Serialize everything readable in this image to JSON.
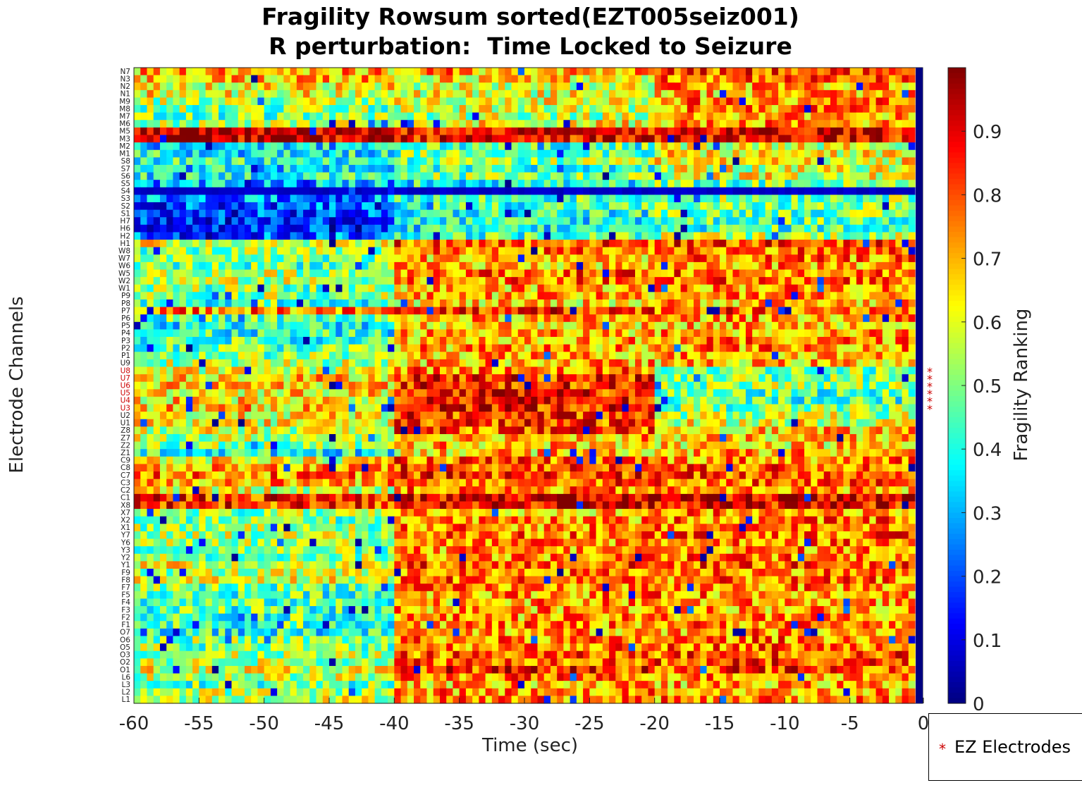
{
  "chart_data": {
    "type": "heatmap",
    "title": [
      "Fragility Rowsum sorted(EZT005seiz001)",
      "R perturbation:  Time Locked to Seizure"
    ],
    "xlabel": "Time (sec)",
    "ylabel": "Electrode Channels",
    "colorbar_label": "Fragility Ranking",
    "colormap": "jet",
    "clim": [
      0,
      1
    ],
    "xlim": [
      -60,
      0
    ],
    "x_ticks": [
      -60,
      -55,
      -50,
      -45,
      -40,
      -35,
      -30,
      -25,
      -20,
      -15,
      -10,
      -5,
      0
    ],
    "x_tick_labels": [
      "-60",
      "-55",
      "-50",
      "-45",
      "-40",
      "-35",
      "-30",
      "-25",
      "-20",
      "-15",
      "-10",
      "-5",
      "0"
    ],
    "colorbar_ticks": [
      0,
      0.1,
      0.2,
      0.3,
      0.4,
      0.5,
      0.6,
      0.7,
      0.8,
      0.9
    ],
    "colorbar_tick_labels": [
      "0",
      "0.1",
      "0.2",
      "0.3",
      "0.4",
      "0.5",
      "0.6",
      "0.7",
      "0.8",
      "0.9"
    ],
    "channels_top_to_bottom": [
      "N7",
      "N3",
      "N2",
      "N1",
      "M9",
      "M8",
      "M7",
      "M6",
      "M5",
      "M3",
      "M2",
      "M1",
      "S8",
      "S7",
      "S6",
      "S5",
      "S4",
      "S3",
      "S2",
      "S1",
      "H7",
      "H6",
      "H2",
      "H1",
      "W8",
      "W7",
      "W6",
      "W5",
      "W2",
      "W1",
      "P9",
      "P8",
      "P7",
      "P6",
      "P5",
      "P4",
      "P3",
      "P2",
      "P1",
      "U9",
      "U8",
      "U7",
      "U6",
      "U5",
      "U4",
      "U3",
      "U2",
      "U1",
      "Z8",
      "Z7",
      "Z2",
      "Z1",
      "C9",
      "C8",
      "C7",
      "C3",
      "C2",
      "C1",
      "X8",
      "X7",
      "X2",
      "X1",
      "Y7",
      "Y6",
      "Y3",
      "Y2",
      "Y1",
      "F9",
      "F8",
      "F7",
      "F5",
      "F4",
      "F3",
      "F2",
      "F1",
      "O7",
      "O6",
      "O5",
      "O3",
      "O2",
      "O1",
      "L6",
      "L3",
      "L2",
      "L1"
    ],
    "ez_electrodes": [
      "U8",
      "U7",
      "U6",
      "U5",
      "U4",
      "U3"
    ],
    "ez_color": "#cc0000",
    "final_column_value": 0,
    "n_time_bins": 120,
    "row_profiles": {
      "N7": [
        0.7,
        0.72,
        0.8
      ],
      "N3": [
        0.68,
        0.65,
        0.78
      ],
      "N2": [
        0.62,
        0.6,
        0.72
      ],
      "N1": [
        0.62,
        0.6,
        0.7
      ],
      "M9": [
        0.55,
        0.6,
        0.75
      ],
      "M8": [
        0.5,
        0.58,
        0.74
      ],
      "M7": [
        0.48,
        0.55,
        0.7
      ],
      "M6": [
        0.55,
        0.62,
        0.72
      ],
      "M5": [
        0.97,
        0.9,
        0.93
      ],
      "M3": [
        0.95,
        0.9,
        0.9
      ],
      "M2": [
        0.35,
        0.45,
        0.6
      ],
      "M1": [
        0.38,
        0.48,
        0.62
      ],
      "S8": [
        0.4,
        0.5,
        0.62
      ],
      "S7": [
        0.35,
        0.45,
        0.58
      ],
      "S6": [
        0.4,
        0.5,
        0.6
      ],
      "S5": [
        0.3,
        0.4,
        0.48
      ],
      "S4": [
        0.05,
        0.05,
        0.05
      ],
      "S3": [
        0.25,
        0.45,
        0.5
      ],
      "S2": [
        0.2,
        0.45,
        0.48
      ],
      "S1": [
        0.18,
        0.42,
        0.48
      ],
      "H7": [
        0.18,
        0.4,
        0.46
      ],
      "H6": [
        0.15,
        0.38,
        0.44
      ],
      "H2": [
        0.22,
        0.45,
        0.55
      ],
      "H1": [
        0.6,
        0.8,
        0.82
      ],
      "W8": [
        0.5,
        0.75,
        0.78
      ],
      "W7": [
        0.5,
        0.7,
        0.75
      ],
      "W6": [
        0.48,
        0.68,
        0.72
      ],
      "W5": [
        0.55,
        0.78,
        0.78
      ],
      "W2": [
        0.55,
        0.76,
        0.78
      ],
      "W1": [
        0.5,
        0.7,
        0.74
      ],
      "P9": [
        0.52,
        0.7,
        0.74
      ],
      "P8": [
        0.45,
        0.66,
        0.7
      ],
      "P7": [
        0.75,
        0.85,
        0.8
      ],
      "P6": [
        0.45,
        0.7,
        0.72
      ],
      "P5": [
        0.4,
        0.68,
        0.7
      ],
      "P4": [
        0.4,
        0.7,
        0.72
      ],
      "P3": [
        0.45,
        0.72,
        0.74
      ],
      "P2": [
        0.48,
        0.72,
        0.74
      ],
      "P1": [
        0.5,
        0.7,
        0.72
      ],
      "U9": [
        0.55,
        0.7,
        0.68
      ],
      "U8": [
        0.6,
        0.75,
        0.5
      ],
      "U7": [
        0.68,
        0.85,
        0.5
      ],
      "U6": [
        0.68,
        0.85,
        0.52
      ],
      "U5": [
        0.65,
        0.85,
        0.45
      ],
      "U4": [
        0.65,
        0.85,
        0.45
      ],
      "U3": [
        0.68,
        0.86,
        0.5
      ],
      "U2": [
        0.62,
        0.82,
        0.55
      ],
      "U1": [
        0.62,
        0.82,
        0.6
      ],
      "Z8": [
        0.58,
        0.8,
        0.68
      ],
      "Z7": [
        0.55,
        0.72,
        0.66
      ],
      "Z2": [
        0.52,
        0.7,
        0.66
      ],
      "Z1": [
        0.4,
        0.68,
        0.7
      ],
      "C9": [
        0.62,
        0.78,
        0.74
      ],
      "C8": [
        0.72,
        0.8,
        0.78
      ],
      "C7": [
        0.75,
        0.82,
        0.8
      ],
      "C3": [
        0.72,
        0.8,
        0.78
      ],
      "C2": [
        0.6,
        0.74,
        0.72
      ],
      "C1": [
        0.85,
        0.92,
        0.92
      ],
      "X8": [
        0.82,
        0.9,
        0.9
      ],
      "X7": [
        0.5,
        0.7,
        0.74
      ],
      "X2": [
        0.5,
        0.72,
        0.76
      ],
      "X1": [
        0.52,
        0.74,
        0.76
      ],
      "Y7": [
        0.55,
        0.76,
        0.78
      ],
      "Y6": [
        0.55,
        0.74,
        0.76
      ],
      "Y3": [
        0.5,
        0.72,
        0.74
      ],
      "Y2": [
        0.52,
        0.74,
        0.76
      ],
      "Y1": [
        0.6,
        0.8,
        0.8
      ],
      "F9": [
        0.55,
        0.74,
        0.76
      ],
      "F8": [
        0.6,
        0.78,
        0.76
      ],
      "F7": [
        0.48,
        0.74,
        0.74
      ],
      "F5": [
        0.45,
        0.74,
        0.74
      ],
      "F4": [
        0.45,
        0.72,
        0.72
      ],
      "F3": [
        0.45,
        0.72,
        0.72
      ],
      "F2": [
        0.45,
        0.72,
        0.74
      ],
      "F1": [
        0.45,
        0.74,
        0.76
      ],
      "O7": [
        0.4,
        0.72,
        0.74
      ],
      "O6": [
        0.5,
        0.74,
        0.76
      ],
      "O5": [
        0.5,
        0.76,
        0.78
      ],
      "O3": [
        0.52,
        0.78,
        0.8
      ],
      "O2": [
        0.55,
        0.8,
        0.8
      ],
      "O1": [
        0.6,
        0.84,
        0.82
      ],
      "L6": [
        0.55,
        0.76,
        0.74
      ],
      "L3": [
        0.48,
        0.7,
        0.7
      ],
      "L2": [
        0.55,
        0.74,
        0.72
      ],
      "L1": [
        0.58,
        0.76,
        0.74
      ]
    },
    "legend": {
      "marker": "*",
      "label": "EZ Electrodes",
      "placement": "bottom-right"
    }
  }
}
